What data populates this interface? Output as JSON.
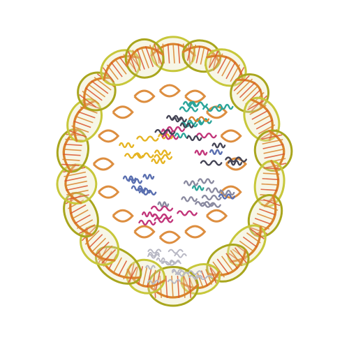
{
  "image": {
    "subject": "molecule-3d-render",
    "background": "#ffffff"
  },
  "colors": {
    "dna_strand_orange": "#d9822b",
    "dna_strand_olive": "#a9a61d",
    "dna_strand_yellow_green": "#c7c73a",
    "dna_backbone_light": "#e8e6b8",
    "histone_teal": "#2aa59a",
    "histone_magenta": "#c2357a",
    "histone_yellow": "#e6b422",
    "histone_gray": "#8a8aa0",
    "histone_blue": "#5a6fb0",
    "histone_dark": "#444455",
    "base_red": "#d9542b",
    "lower_tail_gray": "#b8b8c4"
  }
}
